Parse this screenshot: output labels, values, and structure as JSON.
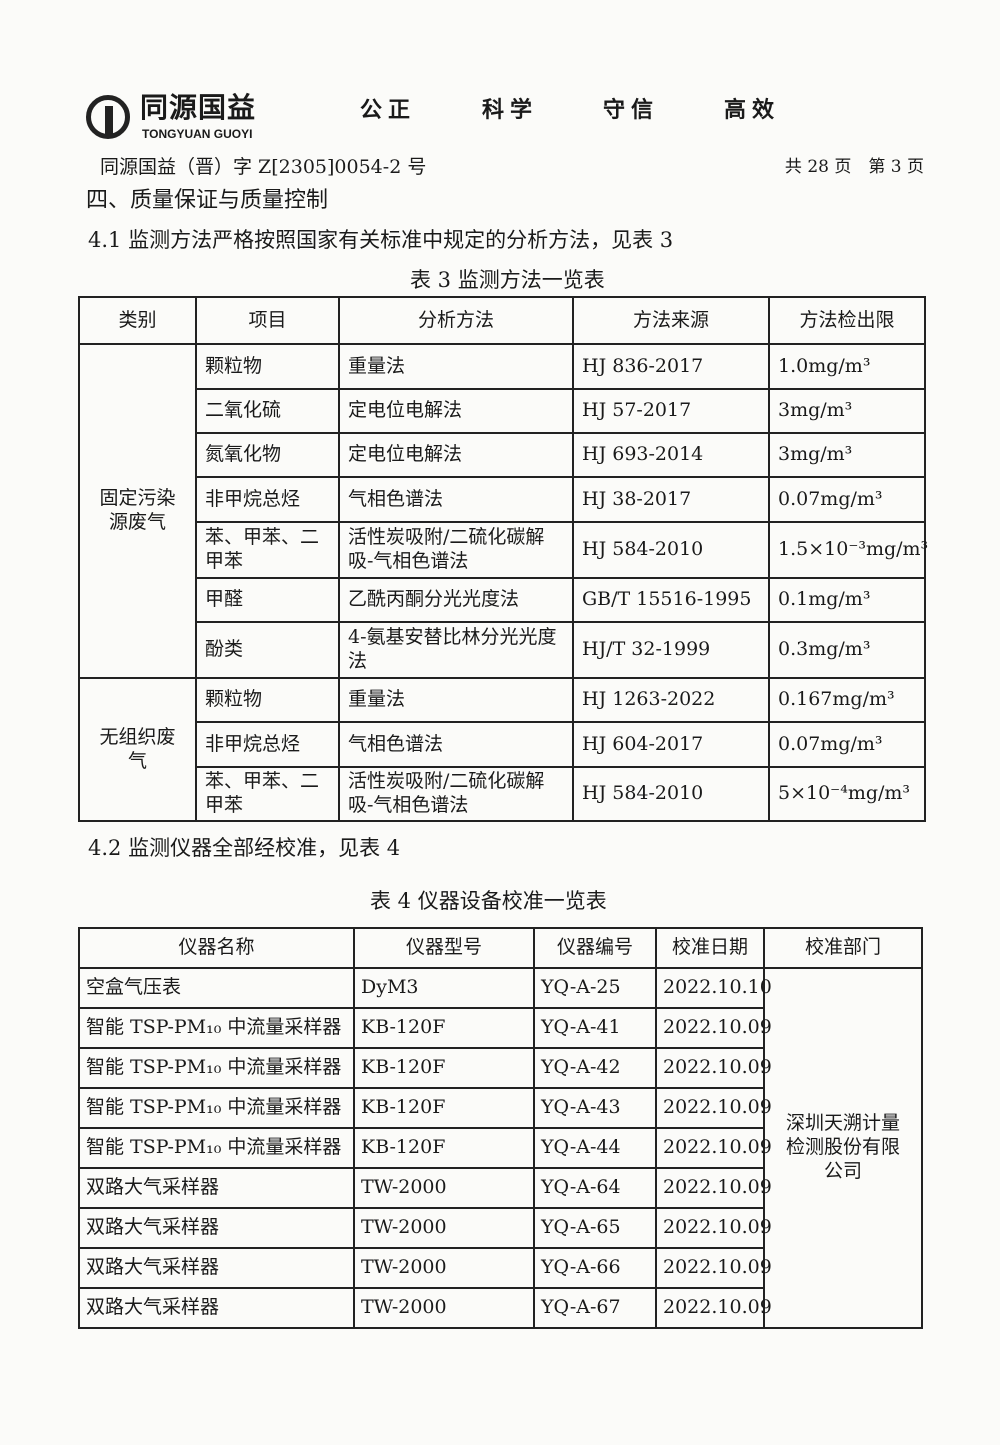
{
  "header": {
    "logo_cn": "同源国益",
    "logo_en": "TONGYUAN GUOYI",
    "motto": [
      "公正",
      "科学",
      "守信",
      "高效"
    ],
    "doc_number": "同源国益（晋）字 Z[2305]0054-2 号",
    "page_info": "共 28 页　第 3 页"
  },
  "section_title": "四、质量保证与质量控制",
  "para_4_1": "4.1  监测方法严格按照国家有关标准中规定的分析方法，见表 3",
  "table3": {
    "caption": "表 3  监测方法一览表",
    "headers": [
      "类别",
      "项目",
      "分析方法",
      "方法来源",
      "方法检出限"
    ],
    "groups": [
      {
        "category": "固定污染源废气",
        "rows": [
          [
            "颗粒物",
            "重量法",
            "HJ 836-2017",
            "1.0mg/m³"
          ],
          [
            "二氧化硫",
            "定电位电解法",
            "HJ 57-2017",
            "3mg/m³"
          ],
          [
            "氮氧化物",
            "定电位电解法",
            "HJ 693-2014",
            "3mg/m³"
          ],
          [
            "非甲烷总烃",
            "气相色谱法",
            "HJ 38-2017",
            "0.07mg/m³"
          ],
          [
            "苯、甲苯、二甲苯",
            "活性炭吸附/二硫化碳解吸-气相色谱法",
            "HJ 584-2010",
            "1.5×10⁻³mg/m³"
          ],
          [
            "甲醛",
            "乙酰丙酮分光光度法",
            "GB/T 15516-1995",
            "0.1mg/m³"
          ],
          [
            "酚类",
            "4-氨基安替比林分光光度法",
            "HJ/T 32-1999",
            "0.3mg/m³"
          ]
        ]
      },
      {
        "category": "无组织废气",
        "rows": [
          [
            "颗粒物",
            "重量法",
            "HJ 1263-2022",
            "0.167mg/m³"
          ],
          [
            "非甲烷总烃",
            "气相色谱法",
            "HJ 604-2017",
            "0.07mg/m³"
          ],
          [
            "苯、甲苯、二甲苯",
            "活性炭吸附/二硫化碳解吸-气相色谱法",
            "HJ 584-2010",
            "5×10⁻⁴mg/m³"
          ]
        ]
      }
    ]
  },
  "para_4_2": "4.2  监测仪器全部经校准，见表 4",
  "table4": {
    "caption": "表 4  仪器设备校准一览表",
    "headers": [
      "仪器名称",
      "仪器型号",
      "仪器编号",
      "校准日期",
      "校准部门"
    ],
    "department": "深圳天溯计量检测股份有限公司",
    "rows": [
      [
        "空盒气压表",
        "DyM3",
        "YQ-A-25",
        "2022.10.10"
      ],
      [
        "智能 TSP-PM₁₀ 中流量采样器",
        "KB-120F",
        "YQ-A-41",
        "2022.10.09"
      ],
      [
        "智能 TSP-PM₁₀ 中流量采样器",
        "KB-120F",
        "YQ-A-42",
        "2022.10.09"
      ],
      [
        "智能 TSP-PM₁₀ 中流量采样器",
        "KB-120F",
        "YQ-A-43",
        "2022.10.09"
      ],
      [
        "智能 TSP-PM₁₀ 中流量采样器",
        "KB-120F",
        "YQ-A-44",
        "2022.10.09"
      ],
      [
        "双路大气采样器",
        "TW-2000",
        "YQ-A-64",
        "2022.10.09"
      ],
      [
        "双路大气采样器",
        "TW-2000",
        "YQ-A-65",
        "2022.10.09"
      ],
      [
        "双路大气采样器",
        "TW-2000",
        "YQ-A-66",
        "2022.10.09"
      ],
      [
        "双路大气采样器",
        "TW-2000",
        "YQ-A-67",
        "2022.10.09"
      ]
    ]
  }
}
